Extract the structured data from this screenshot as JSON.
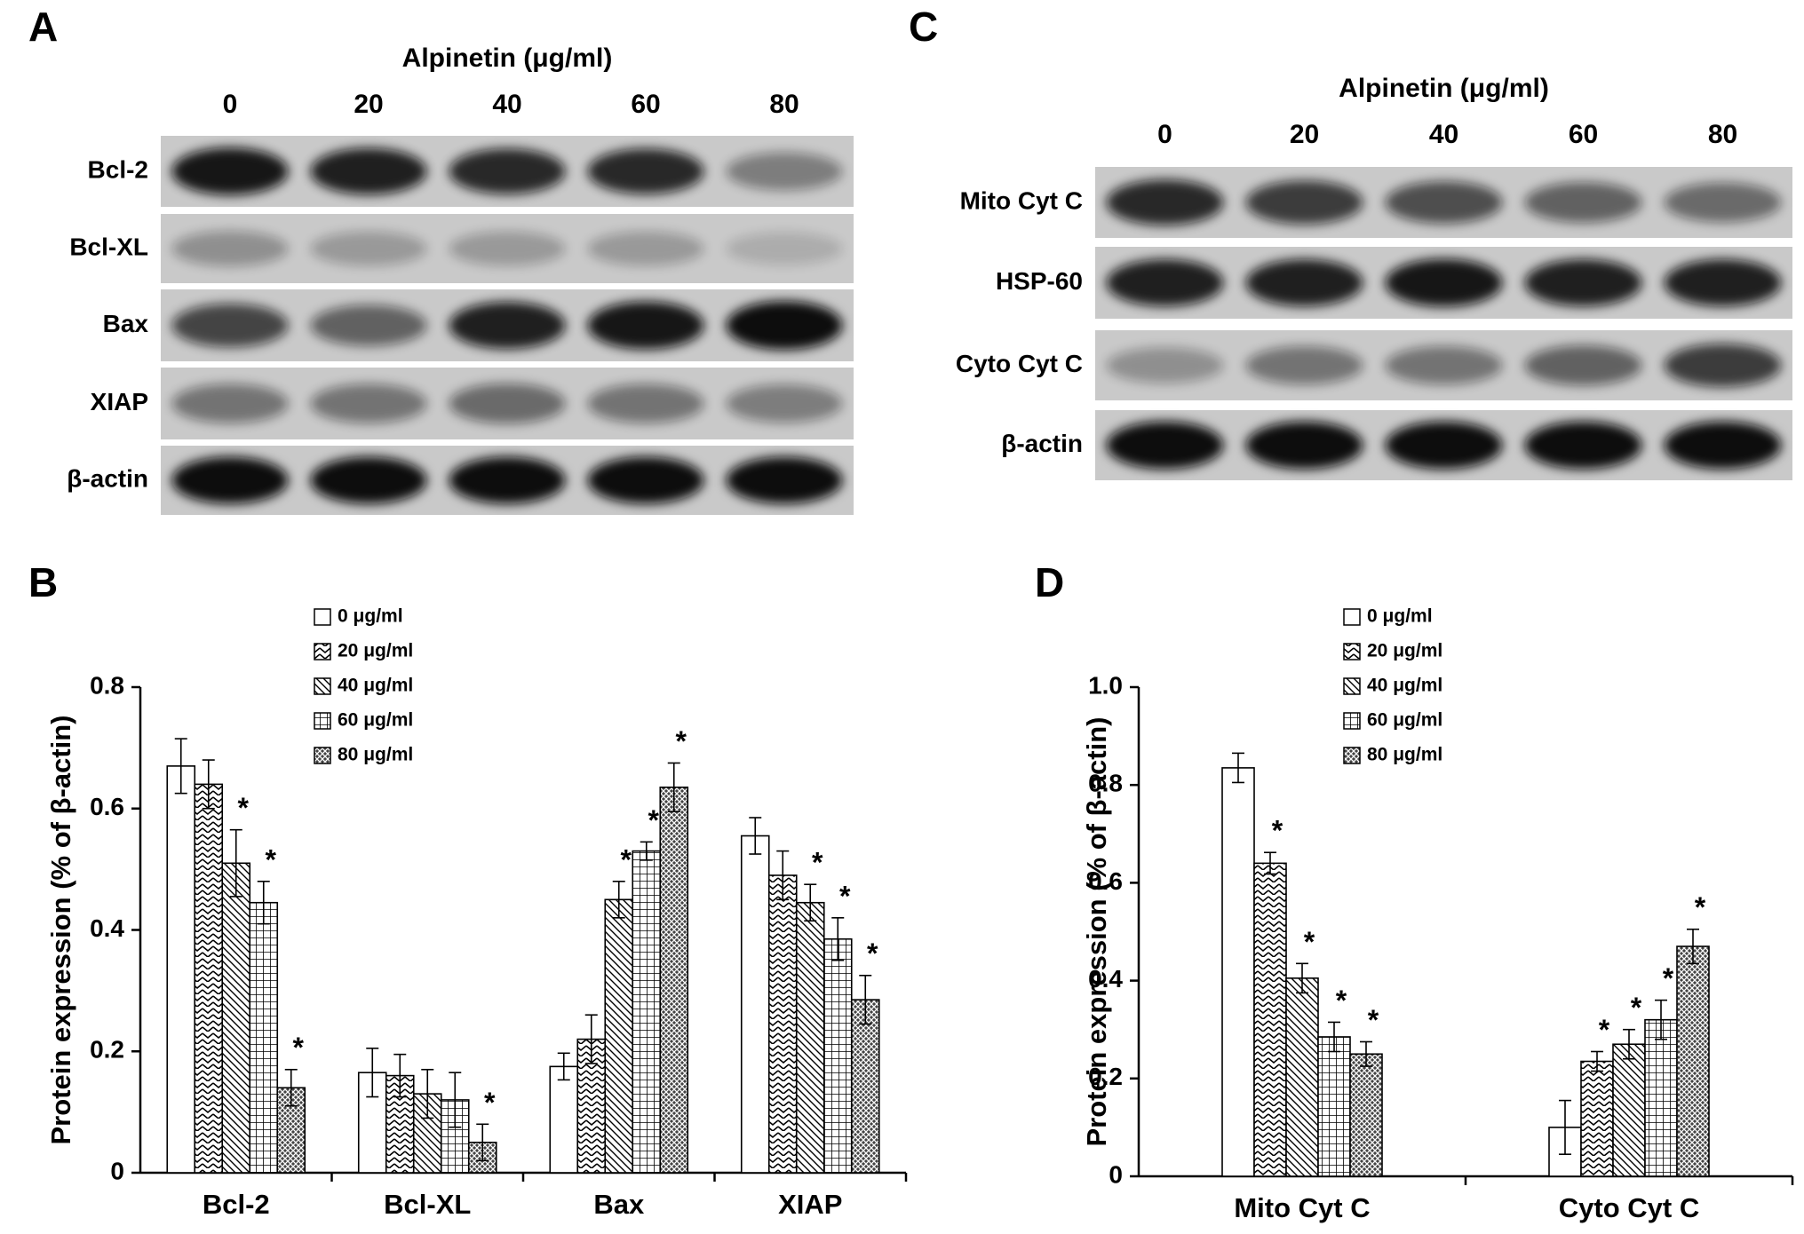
{
  "blots": [
    {
      "panel": "A",
      "title": "Alpinetin (μg/ml)",
      "lanes": [
        "0",
        "20",
        "40",
        "60",
        "80"
      ],
      "rows": [
        "Bcl-2",
        "Bcl-XL",
        "Bax",
        "XIAP",
        "β-actin"
      ]
    },
    {
      "panel": "C",
      "title": "Alpinetin (μg/ml)",
      "lanes": [
        "0",
        "20",
        "40",
        "60",
        "80"
      ],
      "rows": [
        "Mito Cyt C",
        "HSP-60",
        "Cyto Cyt C",
        "β-actin"
      ]
    }
  ],
  "chart_data": [
    {
      "type": "bar",
      "panel": "B",
      "y_label": "Protein expression (% of β-actin)",
      "categories": [
        "Bcl-2",
        "Bcl-XL",
        "Bax",
        "XIAP"
      ],
      "ylim": [
        0,
        0.8
      ],
      "yticks": [
        0,
        0.2,
        0.4,
        0.6,
        0.8
      ],
      "series": [
        {
          "name": "0 μg/ml",
          "color": "#000000",
          "pattern": "none",
          "values": [
            0.67,
            0.165,
            0.175,
            0.555
          ],
          "errors": [
            0.045,
            0.04,
            0.022,
            0.03
          ],
          "significance": [
            null,
            null,
            null,
            null
          ]
        },
        {
          "name": "20 μg/ml",
          "color": "#000000",
          "pattern": "zigzag",
          "values": [
            0.64,
            0.16,
            0.22,
            0.49
          ],
          "errors": [
            0.04,
            0.035,
            0.04,
            0.04
          ],
          "significance": [
            null,
            null,
            null,
            null
          ]
        },
        {
          "name": "40 μg/ml",
          "color": "#000000",
          "pattern": "diagonal",
          "values": [
            0.51,
            0.13,
            0.45,
            0.445
          ],
          "errors": [
            0.055,
            0.04,
            0.03,
            0.03
          ],
          "significance": [
            "*",
            null,
            "*",
            "*"
          ]
        },
        {
          "name": "60 μg/ml",
          "color": "#000000",
          "pattern": "grid",
          "values": [
            0.445,
            0.12,
            0.53,
            0.385
          ],
          "errors": [
            0.035,
            0.045,
            0.015,
            0.035
          ],
          "significance": [
            "*",
            null,
            "*",
            "*"
          ]
        },
        {
          "name": "80 μg/ml",
          "color": "#000000",
          "pattern": "crosshatch",
          "values": [
            0.14,
            0.05,
            0.635,
            0.285
          ],
          "errors": [
            0.03,
            0.03,
            0.04,
            0.04
          ],
          "significance": [
            "*",
            "*",
            "*",
            "*"
          ]
        }
      ]
    },
    {
      "type": "bar",
      "panel": "D",
      "y_label": "Protein expression (% of β-actin)",
      "categories": [
        "Mito Cyt C",
        "Cyto Cyt C"
      ],
      "ylim": [
        0,
        1
      ],
      "yticks": [
        0,
        0.2,
        0.4,
        0.6,
        0.8,
        {
          "value": 1,
          "label": "1.0"
        }
      ],
      "series": [
        {
          "name": "0 μg/ml",
          "color": "#000000",
          "pattern": "none",
          "values": [
            0.835,
            0.1
          ],
          "errors": [
            0.03,
            0.055
          ],
          "significance": [
            null,
            null
          ]
        },
        {
          "name": "20 μg/ml",
          "color": "#000000",
          "pattern": "zigzag",
          "values": [
            0.64,
            0.235
          ],
          "errors": [
            0.022,
            0.02
          ],
          "significance": [
            "*",
            "*"
          ]
        },
        {
          "name": "40 μg/ml",
          "color": "#000000",
          "pattern": "diagonal",
          "values": [
            0.405,
            0.27
          ],
          "errors": [
            0.03,
            0.03
          ],
          "significance": [
            "*",
            "*"
          ]
        },
        {
          "name": "60 μg/ml",
          "color": "#000000",
          "pattern": "grid",
          "values": [
            0.285,
            0.32
          ],
          "errors": [
            0.03,
            0.04
          ],
          "significance": [
            "*",
            "*"
          ]
        },
        {
          "name": "80 μg/ml",
          "color": "#000000",
          "pattern": "crosshatch",
          "values": [
            0.25,
            0.47
          ],
          "errors": [
            0.025,
            0.035
          ],
          "significance": [
            "*",
            "*"
          ]
        }
      ]
    }
  ]
}
